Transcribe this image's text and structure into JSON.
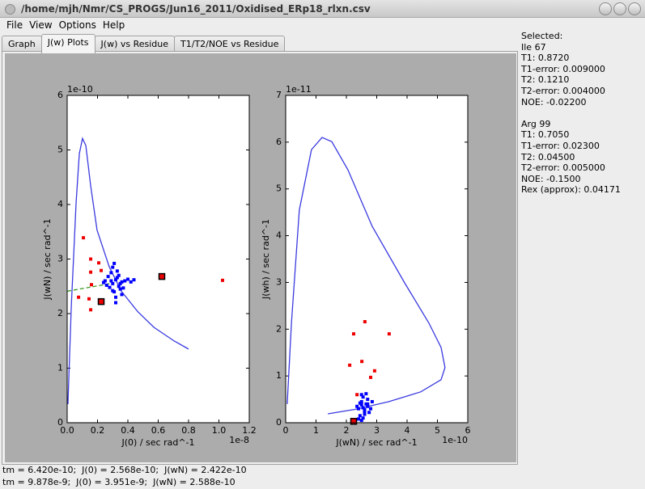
{
  "window": {
    "title": "/home/mjh/Nmr/CS_PROGS/Jun16_2011/Oxidised_ERp18_rlxn.csv"
  },
  "menu": [
    "File",
    "View",
    "Options",
    "Help"
  ],
  "tabs": [
    {
      "label": "Graph"
    },
    {
      "label": "J(w) Plots",
      "active": true
    },
    {
      "label": "J(w) vs Residue"
    },
    {
      "label": "T1/T2/NOE vs Residue"
    }
  ],
  "chart_data": [
    {
      "type": "scatter",
      "x_label": "J(0) / sec rad^-1",
      "y_label": "J(wN) / sec rad^-1",
      "x_offset_label": "1e-8",
      "y_offset_label": "1e-10",
      "xlim": [
        0,
        1.2e-08
      ],
      "ylim": [
        0,
        6e-10
      ],
      "xticks": [
        {
          "value": 0,
          "label": "0.0"
        },
        {
          "value": 2e-09,
          "label": "0.2"
        },
        {
          "value": 4e-09,
          "label": "0.4"
        },
        {
          "value": 6e-09,
          "label": "0.6"
        },
        {
          "value": 8e-09,
          "label": "0.8"
        },
        {
          "value": 1e-08,
          "label": "1.0"
        },
        {
          "value": 1.2e-08,
          "label": "1.2"
        }
      ],
      "yticks": [
        {
          "value": 0,
          "label": "0"
        },
        {
          "value": 1e-10,
          "label": "1"
        },
        {
          "value": 2e-10,
          "label": "2"
        },
        {
          "value": 3e-10,
          "label": "3"
        },
        {
          "value": 4e-10,
          "label": "4"
        },
        {
          "value": 5e-10,
          "label": "5"
        },
        {
          "value": 6e-10,
          "label": "6"
        }
      ],
      "series": [
        {
          "color": "#3a3ae0",
          "style": "line",
          "x": [
            5e-11,
            2.7e-10,
            5.9e-10,
            8e-10,
            1.01e-09,
            1.23e-09,
            1.55e-09,
            1.97e-09,
            2.77e-09,
            3.57e-09,
            4.64e-09,
            5.71e-09,
            7.04e-09,
            8e-09
          ],
          "values": [
            3.4e-11,
            2.12e-10,
            4.04e-10,
            4.93e-10,
            5.21e-10,
            5.08e-10,
            4.34e-10,
            3.53e-10,
            2.86e-10,
            2.41e-10,
            2.04e-10,
            1.75e-10,
            1.5e-10,
            1.35e-10
          ]
        },
        {
          "color": "#3a9a20",
          "style": "dashed",
          "x": [
            0,
            3.04e-09
          ],
          "values": [
            2.41e-10,
            2.56e-10
          ]
        },
        {
          "color": "#ee0000",
          "style": "markers",
          "x": [
            1.07e-09,
            1.55e-09,
            2.08e-09,
            2.24e-09,
            1.55e-09,
            1.6e-09,
            7.5e-10,
            1.44e-09,
            1.55e-09,
            1.024e-08
          ],
          "values": [
            3.39e-10,
            3e-10,
            2.93e-10,
            2.79e-10,
            2.76e-10,
            2.53e-10,
            2.3e-10,
            2.27e-10,
            2.07e-10,
            2.61e-10
          ]
        },
        {
          "color": "#0000ff",
          "style": "markers",
          "x": [
            3e-09,
            3.2e-09,
            2.8e-09,
            3.4e-09,
            3.6e-09,
            2.6e-09,
            3.1e-09,
            3.3e-09,
            2.9e-09,
            3.5e-09,
            3.8e-09,
            4.2e-09,
            2.5e-09,
            3e-09,
            3.2e-09,
            3.4e-09,
            2.7e-09,
            3.1e-09,
            3.6e-09,
            4e-09,
            2.4e-09,
            3.3e-09,
            3e-09,
            3.5e-09,
            2.9e-09,
            3.2e-09,
            4.4e-09,
            3.7e-09
          ],
          "values": [
            2.55e-10,
            2.62e-10,
            2.48e-10,
            2.7e-10,
            2.58e-10,
            2.52e-10,
            2.4e-10,
            2.66e-10,
            2.75e-10,
            2.45e-10,
            2.6e-10,
            2.58e-10,
            2.6e-10,
            2.85e-10,
            2.3e-10,
            2.5e-10,
            2.68e-10,
            2.92e-10,
            2.35e-10,
            2.63e-10,
            2.57e-10,
            2.78e-10,
            2.42e-10,
            2.55e-10,
            2.6e-10,
            2.2e-10,
            2.62e-10,
            2.47e-10
          ]
        },
        {
          "color": "#ee0000",
          "edgecolor": "#000000",
          "style": "markers",
          "x": [
            6.24e-09,
            2.24e-09
          ],
          "values": [
            2.68e-10,
            2.22e-10
          ]
        }
      ]
    },
    {
      "type": "scatter",
      "x_label": "J(wN) / sec rad^-1",
      "y_label": "J(wh) / sec rad^-1",
      "x_offset_label": "1e-10",
      "y_offset_label": "1e-11",
      "xlim": [
        0,
        6e-10
      ],
      "ylim": [
        0,
        7e-11
      ],
      "xticks": [
        {
          "value": 0,
          "label": "0"
        },
        {
          "value": 1e-10,
          "label": "1"
        },
        {
          "value": 2e-10,
          "label": "2"
        },
        {
          "value": 3e-10,
          "label": "3"
        },
        {
          "value": 4e-10,
          "label": "4"
        },
        {
          "value": 5e-10,
          "label": "5"
        },
        {
          "value": 6e-10,
          "label": "6"
        }
      ],
      "yticks": [
        {
          "value": 0,
          "label": "0"
        },
        {
          "value": 1e-11,
          "label": "1"
        },
        {
          "value": 2e-11,
          "label": "2"
        },
        {
          "value": 3e-11,
          "label": "3"
        },
        {
          "value": 4e-11,
          "label": "4"
        },
        {
          "value": 5e-11,
          "label": "5"
        },
        {
          "value": 6e-11,
          "label": "6"
        },
        {
          "value": 7e-11,
          "label": "7"
        }
      ],
      "series": [
        {
          "color": "#3a3ae0",
          "style": "line",
          "x": [
            5e-12,
            1.9e-11,
            4.5e-11,
            8.5e-11,
            1.2e-10,
            1.52e-10,
            2.05e-10,
            2.85e-10,
            3.92e-10,
            4.72e-10,
            5.12e-10,
            5.25e-10,
            5.12e-10,
            4.45e-10,
            3.39e-10,
            2.32e-10,
            1.39e-10
          ],
          "values": [
            4e-12,
            2.13e-11,
            4.55e-11,
            5.84e-11,
            6.1e-11,
            6.01e-11,
            5.41e-11,
            4.2e-11,
            2.99e-11,
            2.13e-11,
            1.61e-11,
            1.18e-11,
            9.2e-12,
            6.6e-12,
            4.5e-12,
            2.9e-12,
            1.9e-12
          ]
        },
        {
          "color": "#ee0000",
          "style": "markers",
          "x": [
            2.24e-10,
            2.61e-10,
            3.41e-10,
            2.11e-10,
            2.51e-10,
            2.8e-10,
            2.93e-10,
            2.35e-10
          ],
          "values": [
            1.9e-11,
            2.16e-11,
            1.9e-11,
            1.23e-11,
            1.31e-11,
            9.7e-12,
            1.11e-11,
            6e-12
          ]
        },
        {
          "color": "#0000ff",
          "style": "markers",
          "x": [
            2.4e-10,
            2.5e-10,
            2.6e-10,
            2.7e-10,
            2.55e-10,
            2.45e-10,
            2.65e-10,
            2.8e-10,
            2.5e-10,
            2.6e-10,
            2.35e-10,
            2.7e-10,
            2.55e-10,
            2.6e-10,
            2.45e-10,
            2.75e-10,
            2.5e-10,
            2.65e-10,
            2.4e-10,
            2.85e-10,
            2.55e-10,
            2.6e-10,
            2.5e-10,
            2.7e-10
          ],
          "values": [
            3e-12,
            4.5e-12,
            2.5e-12,
            3.5e-12,
            5.5e-12,
            1.5e-12,
            4e-12,
            3e-12,
            6e-12,
            2e-12,
            3.5e-12,
            5e-12,
            1e-12,
            2.8e-12,
            4.2e-12,
            2.2e-12,
            3.8e-12,
            6.2e-12,
            8e-13,
            4.5e-12,
            3.2e-12,
            1.8e-12,
            5e-13,
            4e-12
          ]
        },
        {
          "color": "#ee0000",
          "edgecolor": "#000000",
          "style": "markers",
          "x": [
            2.24e-10
          ],
          "values": [
            3e-13
          ]
        }
      ]
    }
  ],
  "selected_panel": {
    "heading": "Selected:",
    "groups": [
      [
        "Ile 67",
        "T1: 0.8720",
        "T1-error: 0.009000",
        "T2: 0.1210",
        "T2-error: 0.004000",
        "NOE: -0.02200"
      ],
      [
        "Arg 99",
        "T1: 0.7050",
        "T1-error: 0.02300",
        "T2: 0.04500",
        "T2-error: 0.005000",
        "NOE: -0.1500",
        "Rex (approx): 0.04171"
      ]
    ]
  },
  "status": [
    "tm = 6.420e-10;  J(0) = 2.568e-10;  J(wN) = 2.422e-10",
    "tm = 9.878e-9;  J(0) = 3.951e-9;  J(wN) = 2.588e-10"
  ]
}
